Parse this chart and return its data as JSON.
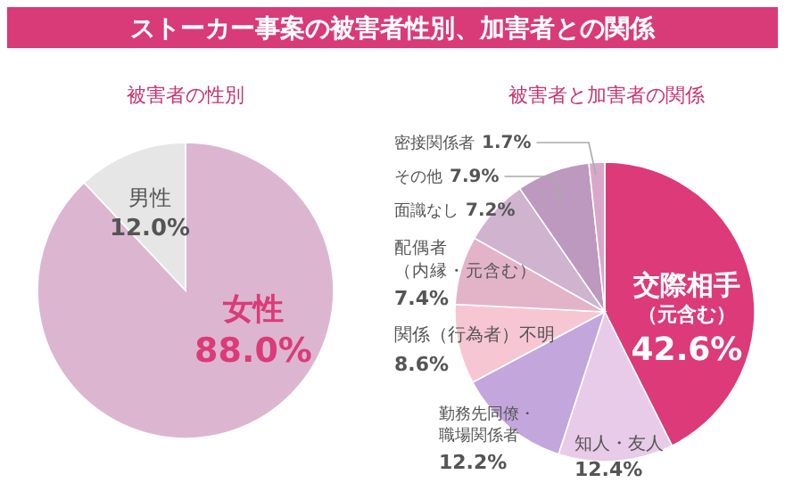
{
  "chart_data": [
    {
      "type": "pie",
      "title": "被害者の性別",
      "categories": [
        "女性",
        "男性"
      ],
      "values": [
        88.0,
        12.0
      ],
      "value_labels": [
        "88.0%",
        "12.0%"
      ],
      "colors": [
        "#dcb6d0",
        "#e6e6e6"
      ],
      "annotations": [
        "ストーカー事案の被害者性別、加害者との関係"
      ]
    },
    {
      "type": "pie",
      "title": "被害者と加害者の関係",
      "categories": [
        "交際相手（元含む）",
        "知人・友人",
        "勤務先同僚・職場関係者",
        "関係（行為者）不明",
        "配偶者（内縁・元含む）",
        "面識なし",
        "その他",
        "密接関係者"
      ],
      "values": [
        42.6,
        12.4,
        12.2,
        8.6,
        7.4,
        7.2,
        7.9,
        1.7
      ],
      "value_labels": [
        "42.6%",
        "12.4%",
        "12.2%",
        "8.6%",
        "7.4%",
        "7.2%",
        "7.9%",
        "1.7%"
      ],
      "colors": [
        "#dc3a78",
        "#e8cbe8",
        "#c3a6dc",
        "#f7c6d3",
        "#e3b4c8",
        "#cfb3cf",
        "#bd98bf",
        "#d9a8c8"
      ]
    }
  ]
}
